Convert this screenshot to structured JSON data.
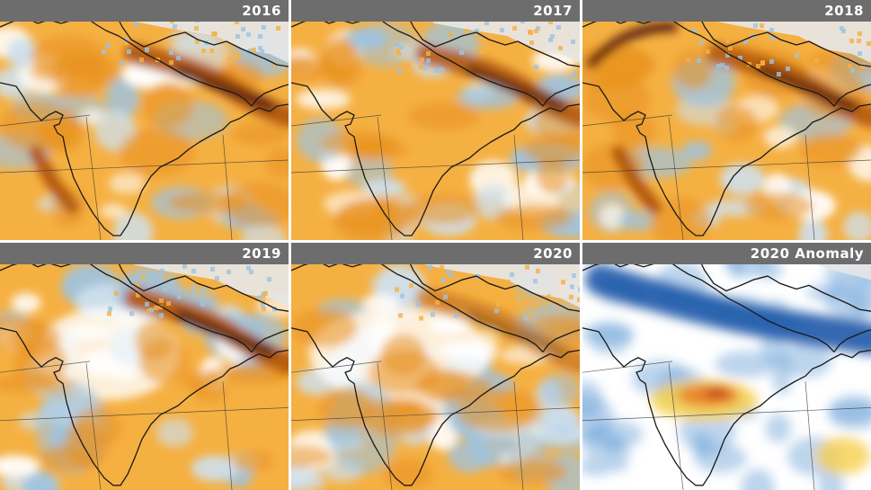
{
  "panels": [
    {
      "id": "p2016",
      "label": "2016",
      "mode": "year",
      "variant": 0
    },
    {
      "id": "p2017",
      "label": "2017",
      "mode": "year",
      "variant": 1
    },
    {
      "id": "p2018",
      "label": "2018",
      "mode": "year",
      "variant": 2
    },
    {
      "id": "p2019",
      "label": "2019",
      "mode": "year",
      "variant": 3
    },
    {
      "id": "p2020",
      "label": "2020",
      "mode": "year",
      "variant": 4
    },
    {
      "id": "panom",
      "label": "2020 Anomaly",
      "mode": "anomaly",
      "variant": 5
    }
  ],
  "colors": {
    "background": "#ffffff",
    "label_bar": "#6d6d6d",
    "label_text": "#ffffff",
    "no_data": "#e6e6e6",
    "year_scale": [
      "#cfe0ee",
      "#9ec3e0",
      "#ffffff",
      "#f5b042",
      "#e8901e",
      "#b45a0f",
      "#5a1e08"
    ],
    "anomaly_scale": [
      "#1c58a8",
      "#6aa2d6",
      "#ffffff",
      "#f6d04d",
      "#e8731c",
      "#b42812"
    ],
    "coastline": "#1a1a1a",
    "graticule": "#3a3a3a"
  },
  "icons": [
    "india-outline-map",
    "graticule-lines"
  ]
}
